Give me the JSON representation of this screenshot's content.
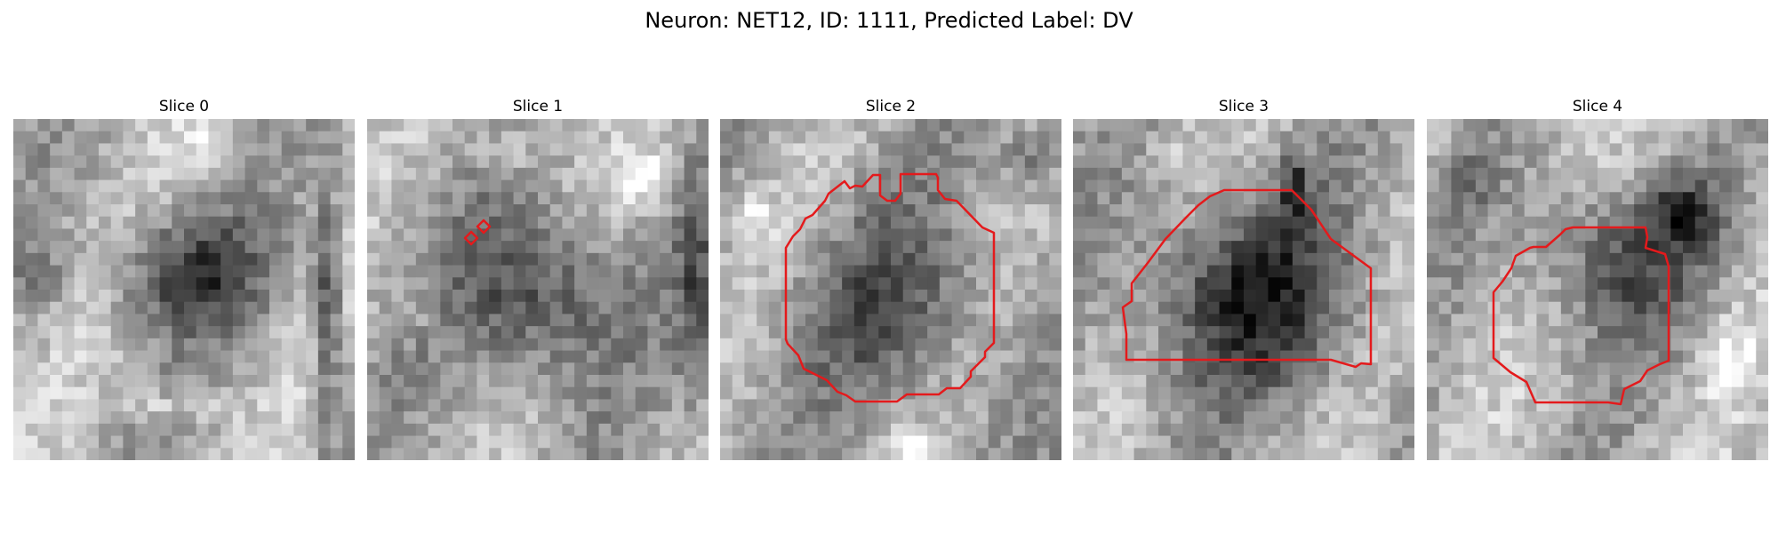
{
  "figure": {
    "title": "Neuron: NET12, ID: 1111, Predicted Label: DV"
  },
  "panels": [
    {
      "title": "Slice 0",
      "has_contour": false
    },
    {
      "title": "Slice 1",
      "has_contour": true
    },
    {
      "title": "Slice 2",
      "has_contour": true
    },
    {
      "title": "Slice 3",
      "has_contour": true
    },
    {
      "title": "Slice 4",
      "has_contour": true
    }
  ],
  "colors": {
    "contour": "#e41a1c",
    "image_colormap": "grayscale"
  }
}
